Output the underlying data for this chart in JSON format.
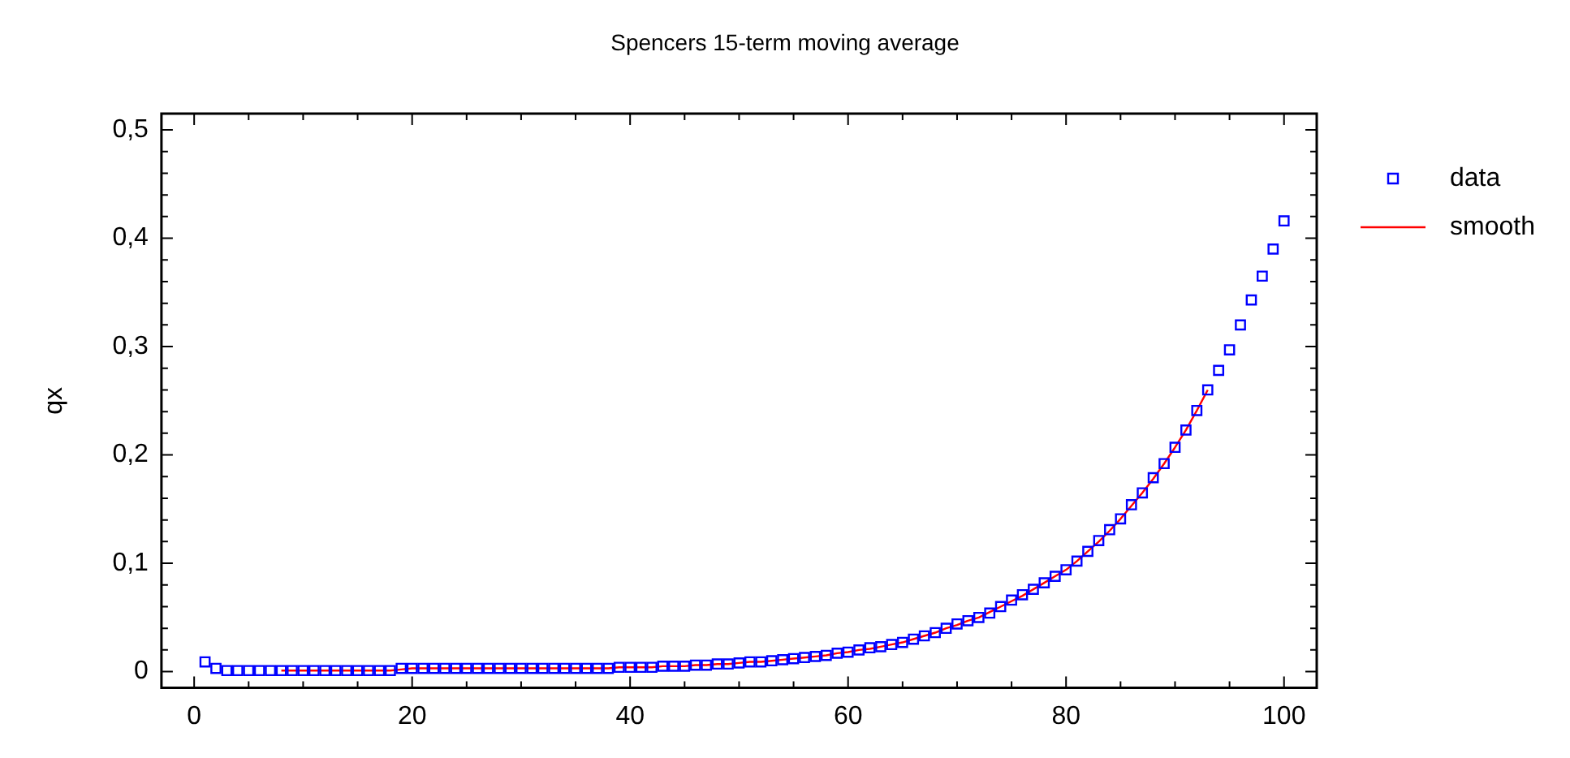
{
  "chart_data": {
    "type": "scatter",
    "title": "Spencers 15-term moving average",
    "ylabel": "qx",
    "xlim": [
      -3,
      103
    ],
    "xticks": [
      0,
      {
        "value": 5,
        "label": null
      },
      {
        "value": 10,
        "label": null
      },
      {
        "value": 15,
        "label": null
      },
      20,
      {
        "value": 25,
        "label": null
      },
      {
        "value": 30,
        "label": null
      },
      {
        "value": 35,
        "label": null
      },
      40,
      {
        "value": 45,
        "label": null
      },
      {
        "value": 50,
        "label": null
      },
      {
        "value": 55,
        "label": null
      },
      60,
      {
        "value": 65,
        "label": null
      },
      {
        "value": 70,
        "label": null
      },
      {
        "value": 75,
        "label": null
      },
      80,
      {
        "value": 85,
        "label": null
      },
      {
        "value": 90,
        "label": null
      },
      {
        "value": 95,
        "label": null
      },
      100
    ],
    "ylim": [
      -0.015,
      0.515
    ],
    "yticks": [
      0,
      {
        "value": 0.02,
        "label": null
      },
      {
        "value": 0.04,
        "label": null
      },
      {
        "value": 0.06,
        "label": null
      },
      {
        "value": 0.08,
        "label": null
      },
      {
        "value": 0.1,
        "label": "0,1"
      },
      {
        "value": 0.12,
        "label": null
      },
      {
        "value": 0.14,
        "label": null
      },
      {
        "value": 0.16,
        "label": null
      },
      {
        "value": 0.18,
        "label": null
      },
      {
        "value": 0.2,
        "label": "0,2"
      },
      {
        "value": 0.22,
        "label": null
      },
      {
        "value": 0.24,
        "label": null
      },
      {
        "value": 0.26,
        "label": null
      },
      {
        "value": 0.28,
        "label": null
      },
      {
        "value": 0.3,
        "label": "0,3"
      },
      {
        "value": 0.32,
        "label": null
      },
      {
        "value": 0.34,
        "label": null
      },
      {
        "value": 0.36,
        "label": null
      },
      {
        "value": 0.38,
        "label": null
      },
      {
        "value": 0.4,
        "label": "0,4"
      },
      {
        "value": 0.42,
        "label": null
      },
      {
        "value": 0.44,
        "label": null
      },
      {
        "value": 0.46,
        "label": null
      },
      {
        "value": 0.48,
        "label": null
      },
      {
        "value": 0.5,
        "label": "0,5"
      }
    ],
    "grid": false,
    "legend": "top right",
    "marker": "square",
    "series": [
      {
        "name": "data",
        "color": "#0000ff",
        "x": [
          1,
          2,
          3,
          4,
          5,
          6,
          7,
          8,
          9,
          10,
          11,
          12,
          13,
          14,
          15,
          16,
          17,
          18,
          19,
          20,
          21,
          22,
          23,
          24,
          25,
          26,
          27,
          28,
          29,
          30,
          31,
          32,
          33,
          34,
          35,
          36,
          37,
          38,
          39,
          40,
          41,
          42,
          43,
          44,
          45,
          46,
          47,
          48,
          49,
          50,
          51,
          52,
          53,
          54,
          55,
          56,
          57,
          58,
          59,
          60,
          61,
          62,
          63,
          64,
          65,
          66,
          67,
          68,
          69,
          70,
          71,
          72,
          73,
          74,
          75,
          76,
          77,
          78,
          79,
          80,
          81,
          82,
          83,
          84,
          85,
          86,
          87,
          88,
          89,
          90,
          91,
          92,
          93,
          94,
          95,
          96,
          97,
          98,
          99,
          100
        ],
        "values": [
          0.009,
          0.003,
          0.001,
          0.001,
          0.001,
          0.001,
          0.001,
          0.001,
          0.001,
          0.001,
          0.001,
          0.001,
          0.001,
          0.001,
          0.001,
          0.001,
          0.001,
          0.001,
          0.003,
          0.003,
          0.003,
          0.003,
          0.003,
          0.003,
          0.003,
          0.003,
          0.003,
          0.003,
          0.003,
          0.003,
          0.003,
          0.003,
          0.003,
          0.003,
          0.003,
          0.003,
          0.003,
          0.003,
          0.004,
          0.004,
          0.004,
          0.004,
          0.005,
          0.005,
          0.005,
          0.006,
          0.006,
          0.007,
          0.007,
          0.008,
          0.009,
          0.009,
          0.01,
          0.011,
          0.012,
          0.013,
          0.014,
          0.015,
          0.017,
          0.018,
          0.02,
          0.022,
          0.023,
          0.025,
          0.027,
          0.03,
          0.033,
          0.036,
          0.04,
          0.044,
          0.047,
          0.05,
          0.054,
          0.06,
          0.066,
          0.071,
          0.076,
          0.082,
          0.088,
          0.094,
          0.102,
          0.111,
          0.121,
          0.131,
          0.141,
          0.154,
          0.165,
          0.179,
          0.192,
          0.207,
          0.223,
          0.241,
          0.26,
          0.278,
          0.297,
          0.32,
          0.343,
          0.365,
          0.39,
          0.416
        ]
      },
      {
        "name": "smooth",
        "type": "line",
        "marker": "none",
        "color": "#ff0000",
        "x": [
          8,
          9,
          10,
          11,
          12,
          13,
          14,
          15,
          16,
          17,
          18,
          19,
          20,
          21,
          22,
          23,
          24,
          25,
          26,
          27,
          28,
          29,
          30,
          31,
          32,
          33,
          34,
          35,
          36,
          37,
          38,
          39,
          40,
          41,
          42,
          43,
          44,
          45,
          46,
          47,
          48,
          49,
          50,
          51,
          52,
          53,
          54,
          55,
          56,
          57,
          58,
          59,
          60,
          61,
          62,
          63,
          64,
          65,
          66,
          67,
          68,
          69,
          70,
          71,
          72,
          73,
          74,
          75,
          76,
          77,
          78,
          79,
          80,
          81,
          82,
          83,
          84,
          85,
          86,
          87,
          88,
          89,
          90,
          91,
          92,
          93
        ],
        "values": [
          0.001,
          0.001,
          0.001,
          0.001,
          0.001,
          0.001,
          0.001,
          0.001,
          0.001,
          0.001,
          0.001,
          0.002,
          0.003,
          0.003,
          0.003,
          0.003,
          0.003,
          0.003,
          0.003,
          0.003,
          0.003,
          0.003,
          0.003,
          0.003,
          0.003,
          0.003,
          0.003,
          0.003,
          0.003,
          0.003,
          0.003,
          0.004,
          0.004,
          0.004,
          0.004,
          0.005,
          0.005,
          0.005,
          0.006,
          0.006,
          0.007,
          0.007,
          0.008,
          0.009,
          0.009,
          0.01,
          0.011,
          0.012,
          0.013,
          0.014,
          0.015,
          0.017,
          0.018,
          0.02,
          0.021,
          0.023,
          0.025,
          0.027,
          0.03,
          0.033,
          0.036,
          0.04,
          0.043,
          0.047,
          0.05,
          0.055,
          0.06,
          0.065,
          0.07,
          0.076,
          0.082,
          0.088,
          0.094,
          0.102,
          0.111,
          0.12,
          0.13,
          0.141,
          0.153,
          0.165,
          0.178,
          0.192,
          0.207,
          0.223,
          0.241,
          0.26
        ]
      }
    ]
  }
}
